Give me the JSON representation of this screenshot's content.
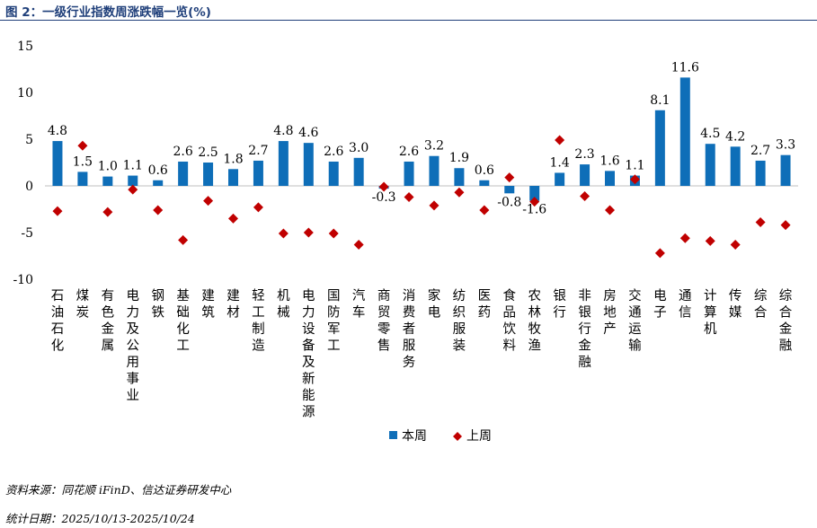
{
  "figure": {
    "title": "图 2：一级行业指数周涨跌幅一览(%)",
    "source": "资料来源：同花顺 iFinD、信达证券研发中心",
    "period": "统计日期：2025/10/13-2025/10/24"
  },
  "colors": {
    "this_week": "#0e6eb8",
    "last_week": "#c00000",
    "title": "#1f3f7a"
  },
  "chart_data": {
    "type": "bar",
    "title": "一级行业指数周涨跌幅一览(%)",
    "categories": [
      "石油石化",
      "煤炭",
      "有色金属",
      "电力及公用事业",
      "钢铁",
      "基础化工",
      "建筑",
      "建材",
      "轻工制造",
      "机械",
      "电力设备及新能源",
      "国防军工",
      "汽车",
      "商贸零售",
      "消费者服务",
      "家电",
      "纺织服装",
      "医药",
      "食品饮料",
      "农林牧渔",
      "银行",
      "非银行金融",
      "房地产",
      "交通运输",
      "电子",
      "通信",
      "计算机",
      "传媒",
      "综合",
      "综合金融"
    ],
    "series": [
      {
        "name": "本周",
        "mark": "bar",
        "values": [
          4.8,
          1.5,
          1.0,
          1.1,
          0.6,
          2.6,
          2.5,
          1.8,
          2.7,
          4.8,
          4.6,
          2.6,
          3.0,
          -0.3,
          2.6,
          3.2,
          1.9,
          0.6,
          -0.8,
          -1.6,
          1.4,
          2.3,
          1.6,
          1.1,
          8.1,
          11.6,
          4.5,
          4.2,
          2.7,
          3.3
        ],
        "labels": [
          "4.8",
          "1.5",
          "1.0",
          "1.1",
          "0.6",
          "2.6",
          "2.5",
          "1.8",
          "2.7",
          "4.8",
          "4.6",
          "2.6",
          "3.0",
          "-0.3",
          "2.6",
          "3.2",
          "1.9",
          "0.6",
          "-0.8",
          "-1.6",
          "1.4",
          "2.3",
          "1.6",
          "1.1",
          "8.1",
          "11.6",
          "4.5",
          "4.2",
          "2.7",
          "3.3"
        ]
      },
      {
        "name": "上周",
        "mark": "diamond",
        "values": [
          -2.7,
          4.3,
          -2.8,
          -0.4,
          -2.6,
          -5.8,
          -1.6,
          -3.5,
          -2.3,
          -5.1,
          -5.0,
          -5.1,
          -6.3,
          -0.1,
          -1.2,
          -2.1,
          -0.7,
          -2.6,
          0.9,
          -1.7,
          4.9,
          -1.1,
          -2.6,
          0.7,
          -7.2,
          -5.6,
          -5.9,
          -6.3,
          -3.9,
          -4.2
        ]
      }
    ],
    "ylim": [
      -10,
      15
    ],
    "yticks": [
      -10,
      -5,
      0,
      5,
      10,
      15
    ],
    "ytick_labels": [
      "-10",
      "-5",
      "0",
      "5",
      "10",
      "15"
    ],
    "xlabel": "",
    "ylabel": "",
    "legend": {
      "position": "bottom-center",
      "items": [
        "本周",
        "上周"
      ]
    },
    "grid": false
  }
}
